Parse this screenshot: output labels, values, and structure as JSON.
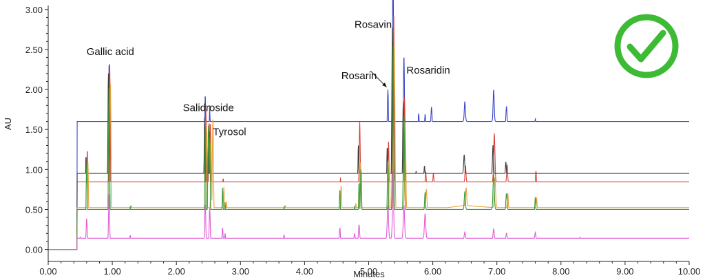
{
  "chart_data": {
    "type": "line",
    "xlabel": "Minutes",
    "ylabel": "AU",
    "xlim": [
      0,
      10
    ],
    "ylim": [
      -0.15,
      3.05
    ],
    "x_ticks": [
      "0.00",
      "1.00",
      "2.00",
      "3.00",
      "4.00",
      "5.00",
      "6.00",
      "7.00",
      "8.00",
      "9.00",
      "10.00"
    ],
    "y_ticks": [
      "0.00",
      "0.50",
      "1.00",
      "1.50",
      "2.00",
      "2.50",
      "3.00"
    ],
    "grid": false,
    "baseline": [
      [
        0,
        0
      ],
      [
        0.45,
        0
      ],
      [
        0.5,
        0.08
      ],
      [
        0.9,
        0.05
      ],
      [
        1.5,
        0.03
      ],
      [
        2.2,
        0.02
      ],
      [
        2.4,
        0.06
      ],
      [
        2.9,
        0.06
      ],
      [
        3.5,
        0.07
      ],
      [
        4.0,
        0.1
      ],
      [
        4.3,
        0.18
      ],
      [
        4.7,
        0.28
      ],
      [
        5.0,
        0.36
      ],
      [
        5.2,
        0.4
      ],
      [
        5.5,
        0.45
      ],
      [
        6.0,
        0.5
      ],
      [
        6.5,
        0.55
      ],
      [
        7.0,
        0.52
      ],
      [
        7.5,
        0.47
      ],
      [
        8.0,
        0.42
      ],
      [
        8.5,
        0.34
      ],
      [
        9.0,
        0.26
      ],
      [
        9.5,
        0.2
      ],
      [
        10,
        0.16
      ]
    ],
    "peaks": [
      [
        0.5,
        0.4
      ],
      [
        0.55,
        0.25
      ],
      [
        0.6,
        1.05
      ],
      [
        0.72,
        0.3
      ],
      [
        0.95,
        1.95
      ],
      [
        1.08,
        0.3
      ],
      [
        1.28,
        0.45
      ],
      [
        1.45,
        0.15
      ],
      [
        2.45,
        1.55
      ],
      [
        2.52,
        1.4
      ],
      [
        2.72,
        0.7
      ],
      [
        2.76,
        0.5
      ],
      [
        2.95,
        0.15
      ],
      [
        3.15,
        0.15
      ],
      [
        3.45,
        0.3
      ],
      [
        3.68,
        0.45
      ],
      [
        4.55,
        0.6
      ],
      [
        4.78,
        0.3
      ],
      [
        4.85,
        0.6
      ],
      [
        5.3,
        0.8
      ],
      [
        5.38,
        2.4
      ],
      [
        5.55,
        1.2
      ],
      [
        5.88,
        0.3
      ],
      [
        6.5,
        0.25
      ],
      [
        6.95,
        0.4
      ],
      [
        7.15,
        0.25
      ],
      [
        7.6,
        0.3
      ],
      [
        8.3,
        0.15
      ]
    ],
    "series": [
      {
        "color": "#3a45c8",
        "yscale": 1.0,
        "xshift": 0.0,
        "bg": 1.0,
        "pscale": 1.0,
        "extra": [
          [
            0.6,
            1.15
          ],
          [
            0.95,
            1.95
          ],
          [
            1.28,
            0.6
          ],
          [
            2.45,
            1.65
          ],
          [
            2.72,
            1.3
          ],
          [
            3.68,
            0.75
          ],
          [
            4.55,
            1.55
          ],
          [
            5.3,
            2.0
          ],
          [
            5.38,
            2.9
          ],
          [
            5.55,
            2.15
          ],
          [
            5.78,
            1.7
          ],
          [
            5.98,
            1.78
          ],
          [
            6.5,
            1.78
          ],
          [
            6.95,
            1.78
          ],
          [
            7.15,
            1.65
          ],
          [
            7.62,
            1.5
          ],
          [
            8.87,
            0.5
          ]
        ],
        "bgpoints": [
          [
            4.3,
            0.4
          ],
          [
            4.7,
            0.8
          ],
          [
            5.0,
            1.0
          ],
          [
            5.5,
            1.2
          ],
          [
            6.0,
            1.45
          ],
          [
            6.5,
            1.6
          ],
          [
            7.0,
            1.6
          ],
          [
            7.5,
            1.4
          ],
          [
            8.0,
            1.1
          ],
          [
            8.5,
            0.8
          ],
          [
            9.0,
            0.52
          ],
          [
            9.5,
            0.38
          ],
          [
            10,
            0.28
          ]
        ]
      },
      {
        "color": "#d9433b",
        "yscale": 1.0,
        "xshift": 0.01,
        "bg": 1.0,
        "pscale": 1.0,
        "extra": [
          [
            0.95,
            2.32
          ],
          [
            2.5,
            1.6
          ],
          [
            4.85,
            1.6
          ],
          [
            5.38,
            2.85
          ],
          [
            5.55,
            1.9
          ],
          [
            6.0,
            0.95
          ],
          [
            6.5,
            1.0
          ],
          [
            6.95,
            1.45
          ],
          [
            7.15,
            0.95
          ],
          [
            7.62,
            0.85
          ],
          [
            8.27,
            0.7
          ]
        ],
        "bgpoints": [
          [
            4.3,
            0.2
          ],
          [
            4.7,
            0.35
          ],
          [
            5.0,
            0.5
          ],
          [
            5.5,
            0.6
          ],
          [
            6.0,
            0.7
          ],
          [
            6.5,
            0.8
          ],
          [
            7.0,
            0.85
          ],
          [
            7.5,
            0.72
          ],
          [
            8.0,
            0.55
          ],
          [
            8.5,
            0.4
          ],
          [
            9.0,
            0.3
          ],
          [
            9.5,
            0.22
          ],
          [
            10,
            0.17
          ]
        ]
      },
      {
        "color": "#3d3d3d",
        "yscale": 1.0,
        "xshift": -0.01,
        "bg": 1.0,
        "pscale": 0.95,
        "extra": [
          [
            0.95,
            2.2
          ],
          [
            2.48,
            1.5
          ],
          [
            4.85,
            1.3
          ],
          [
            5.38,
            2.6
          ],
          [
            5.55,
            1.85
          ],
          [
            5.75,
            0.98
          ],
          [
            6.5,
            1.0
          ],
          [
            6.95,
            0.98
          ],
          [
            7.62,
            0.65
          ]
        ],
        "bgpoints": [
          [
            4.3,
            0.18
          ],
          [
            4.7,
            0.32
          ],
          [
            5.0,
            0.42
          ],
          [
            5.5,
            0.6
          ],
          [
            6.0,
            0.82
          ],
          [
            6.5,
            0.95
          ],
          [
            7.0,
            0.92
          ],
          [
            7.5,
            0.7
          ],
          [
            8.0,
            0.45
          ],
          [
            8.5,
            0.32
          ],
          [
            9.0,
            0.24
          ],
          [
            9.5,
            0.19
          ],
          [
            10,
            0.16
          ]
        ]
      },
      {
        "color": "#e8a23c",
        "yscale": 1.0,
        "xshift": 0.02,
        "bg": 1.0,
        "pscale": 0.9,
        "extra": [
          [
            0.95,
            2.1
          ],
          [
            2.55,
            1.65
          ],
          [
            4.55,
            0.8
          ],
          [
            4.85,
            1.1
          ],
          [
            5.38,
            2.55
          ],
          [
            5.55,
            1.6
          ],
          [
            6.95,
            0.9
          ],
          [
            7.62,
            0.45
          ]
        ],
        "bgpoints": [
          [
            4.3,
            0.15
          ],
          [
            4.7,
            0.28
          ],
          [
            5.0,
            0.36
          ],
          [
            5.5,
            0.42
          ],
          [
            6.0,
            0.5
          ],
          [
            6.5,
            0.55
          ],
          [
            7.0,
            0.52
          ],
          [
            7.5,
            0.4
          ],
          [
            8.0,
            0.32
          ],
          [
            8.5,
            0.25
          ],
          [
            9.0,
            0.2
          ],
          [
            9.5,
            0.17
          ],
          [
            10,
            0.15
          ]
        ]
      },
      {
        "color": "#3f9a3a",
        "yscale": 1.0,
        "xshift": 0.0,
        "bg": 1.0,
        "pscale": 0.9,
        "extra": [
          [
            0.95,
            2.05
          ],
          [
            2.5,
            1.55
          ],
          [
            4.88,
            1.0
          ],
          [
            5.38,
            2.5
          ],
          [
            5.55,
            1.7
          ],
          [
            6.95,
            0.95
          ],
          [
            7.15,
            0.7
          ]
        ],
        "bgpoints": [
          [
            4.3,
            0.14
          ],
          [
            4.7,
            0.25
          ],
          [
            5.0,
            0.34
          ],
          [
            5.5,
            0.4
          ],
          [
            6.0,
            0.46
          ],
          [
            6.5,
            0.5
          ],
          [
            7.0,
            0.5
          ],
          [
            7.5,
            0.4
          ],
          [
            8.0,
            0.32
          ],
          [
            8.5,
            0.25
          ],
          [
            9.0,
            0.2
          ],
          [
            9.5,
            0.17
          ],
          [
            10,
            0.15
          ]
        ]
      },
      {
        "color": "#e05ad6",
        "yscale": 1.0,
        "xshift": 0.0,
        "bg": 1.0,
        "pscale": 0.35,
        "extra": [
          [
            5.3,
            0.55
          ],
          [
            5.38,
            0.7
          ],
          [
            5.55,
            0.55
          ],
          [
            5.88,
            0.45
          ],
          [
            6.5,
            0.15
          ],
          [
            6.95,
            0.15
          ]
        ],
        "bgpoints": [
          [
            0.5,
            0.02
          ],
          [
            4.3,
            0.03
          ],
          [
            4.7,
            0.08
          ],
          [
            5.0,
            0.12
          ],
          [
            5.5,
            0.14
          ],
          [
            6.0,
            0.14
          ],
          [
            6.5,
            0.13
          ],
          [
            7.0,
            0.12
          ],
          [
            7.5,
            0.11
          ],
          [
            8.0,
            0.1
          ],
          [
            9.0,
            0.1
          ],
          [
            10,
            0.1
          ]
        ]
      }
    ],
    "annotations": [
      {
        "text": "Gallic acid",
        "x": 0.97,
        "y": 2.43
      },
      {
        "text": "Salidroside",
        "x": 2.5,
        "y": 1.73
      },
      {
        "text": "Tyrosol",
        "x": 2.83,
        "y": 1.43
      },
      {
        "text": "Rosavin",
        "x": 5.07,
        "y": 2.77
      },
      {
        "text": "Rosarin",
        "x": 4.85,
        "y": 2.13
      },
      {
        "text": "Rosaridin",
        "x": 5.93,
        "y": 2.2
      }
    ],
    "arrow": {
      "from": [
        5.03,
        2.23
      ],
      "to": [
        5.28,
        2.03
      ]
    }
  },
  "badge": {
    "icon": "check-circle-icon",
    "color": "#3dbb35"
  }
}
